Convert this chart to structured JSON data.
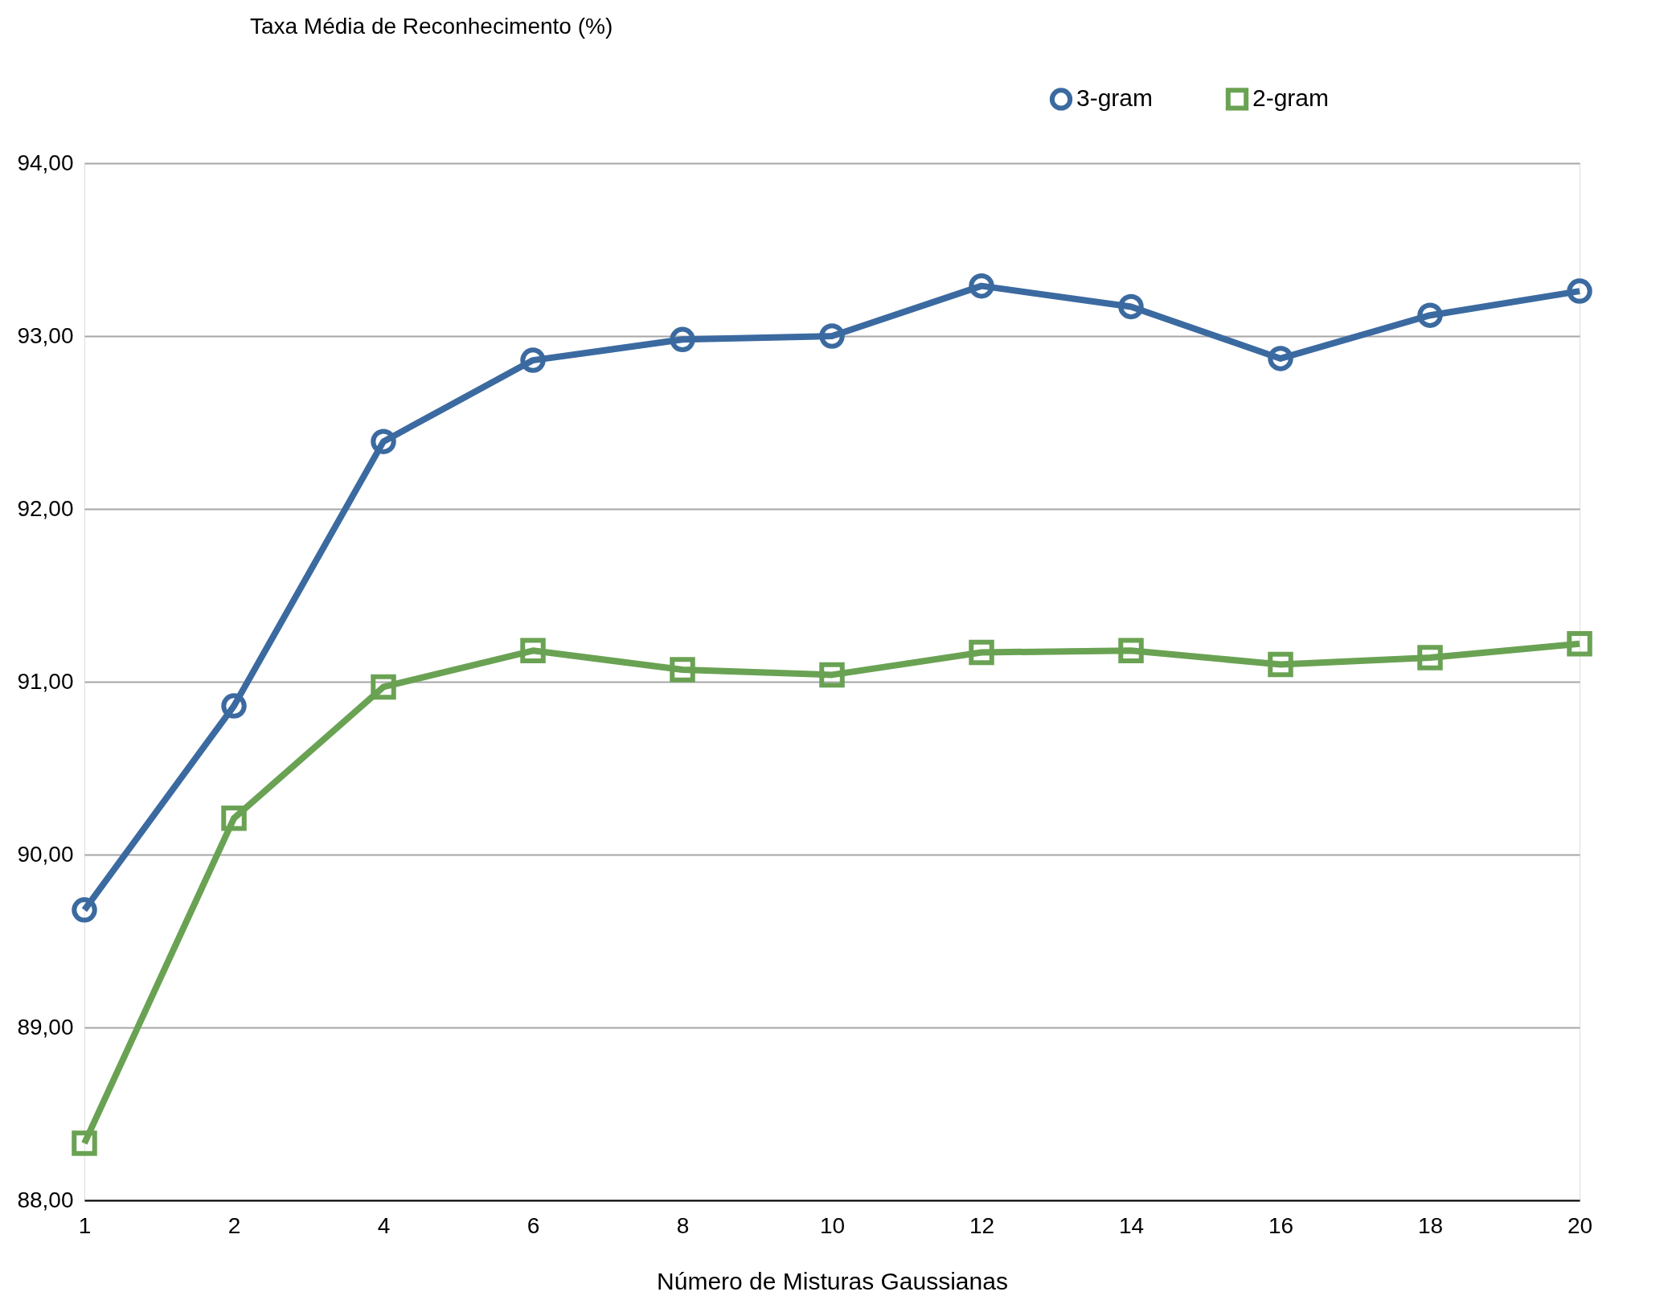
{
  "chart_data": {
    "type": "line",
    "title": "Taxa Média de Reconhecimento (%)",
    "xlabel": "Número de Misturas Gaussianas",
    "categories": [
      "1",
      "2",
      "4",
      "6",
      "8",
      "10",
      "12",
      "14",
      "16",
      "18",
      "20"
    ],
    "series": [
      {
        "name": "3-gram",
        "color": "#3b6aa0",
        "marker": "circle",
        "values": [
          89.68,
          90.86,
          92.39,
          92.86,
          92.98,
          93.0,
          93.29,
          93.17,
          92.87,
          93.12,
          93.26
        ]
      },
      {
        "name": "2-gram",
        "color": "#6aa253",
        "marker": "square",
        "values": [
          88.33,
          90.21,
          90.97,
          91.18,
          91.07,
          91.04,
          91.17,
          91.18,
          91.1,
          91.14,
          91.22
        ]
      }
    ],
    "ylim": [
      88,
      94
    ],
    "yticks": [
      {
        "value": 88,
        "label": "88,00"
      },
      {
        "value": 89,
        "label": "89,00"
      },
      {
        "value": 90,
        "label": "90,00"
      },
      {
        "value": 91,
        "label": "91,00"
      },
      {
        "value": 92,
        "label": "92,00"
      },
      {
        "value": 93,
        "label": "93,00"
      },
      {
        "value": 94,
        "label": "94,00"
      }
    ],
    "grid": "y",
    "legend": "top right",
    "line_style": "solid"
  }
}
